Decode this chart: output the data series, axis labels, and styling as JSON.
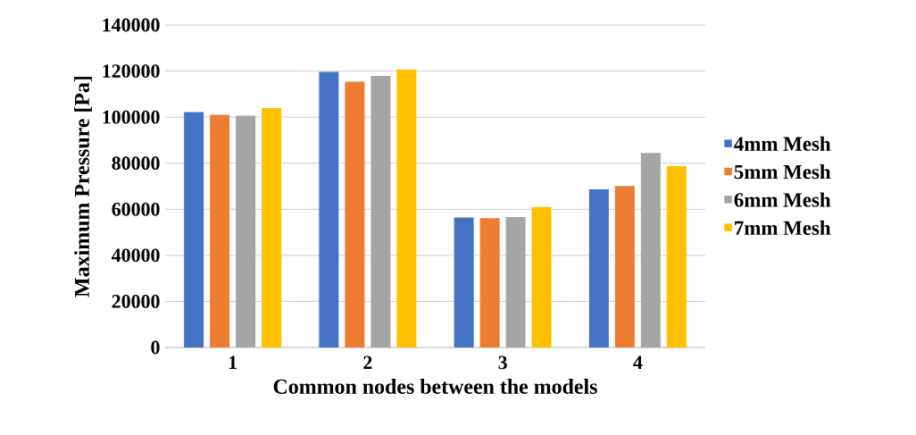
{
  "chart_data": {
    "type": "bar",
    "xlabel": "Common nodes between the models",
    "ylabel": "Maximum Pressure [Pa]",
    "categories": [
      "1",
      "2",
      "3",
      "4"
    ],
    "series": [
      {
        "name": "4mm Mesh",
        "color": "#4472c4",
        "values": [
          102200,
          119600,
          56400,
          68600
        ]
      },
      {
        "name": "5mm Mesh",
        "color": "#ed7d31",
        "values": [
          101000,
          115400,
          56100,
          70100
        ]
      },
      {
        "name": "6mm Mesh",
        "color": "#a5a5a5",
        "values": [
          100600,
          117900,
          56600,
          84400
        ]
      },
      {
        "name": "7mm Mesh",
        "color": "#ffc000",
        "values": [
          103900,
          120700,
          61000,
          78700
        ]
      }
    ],
    "ylim": [
      0,
      140000
    ],
    "yticks": [
      0,
      20000,
      40000,
      60000,
      80000,
      100000,
      120000,
      140000
    ],
    "grid": "y",
    "legend": "right"
  }
}
